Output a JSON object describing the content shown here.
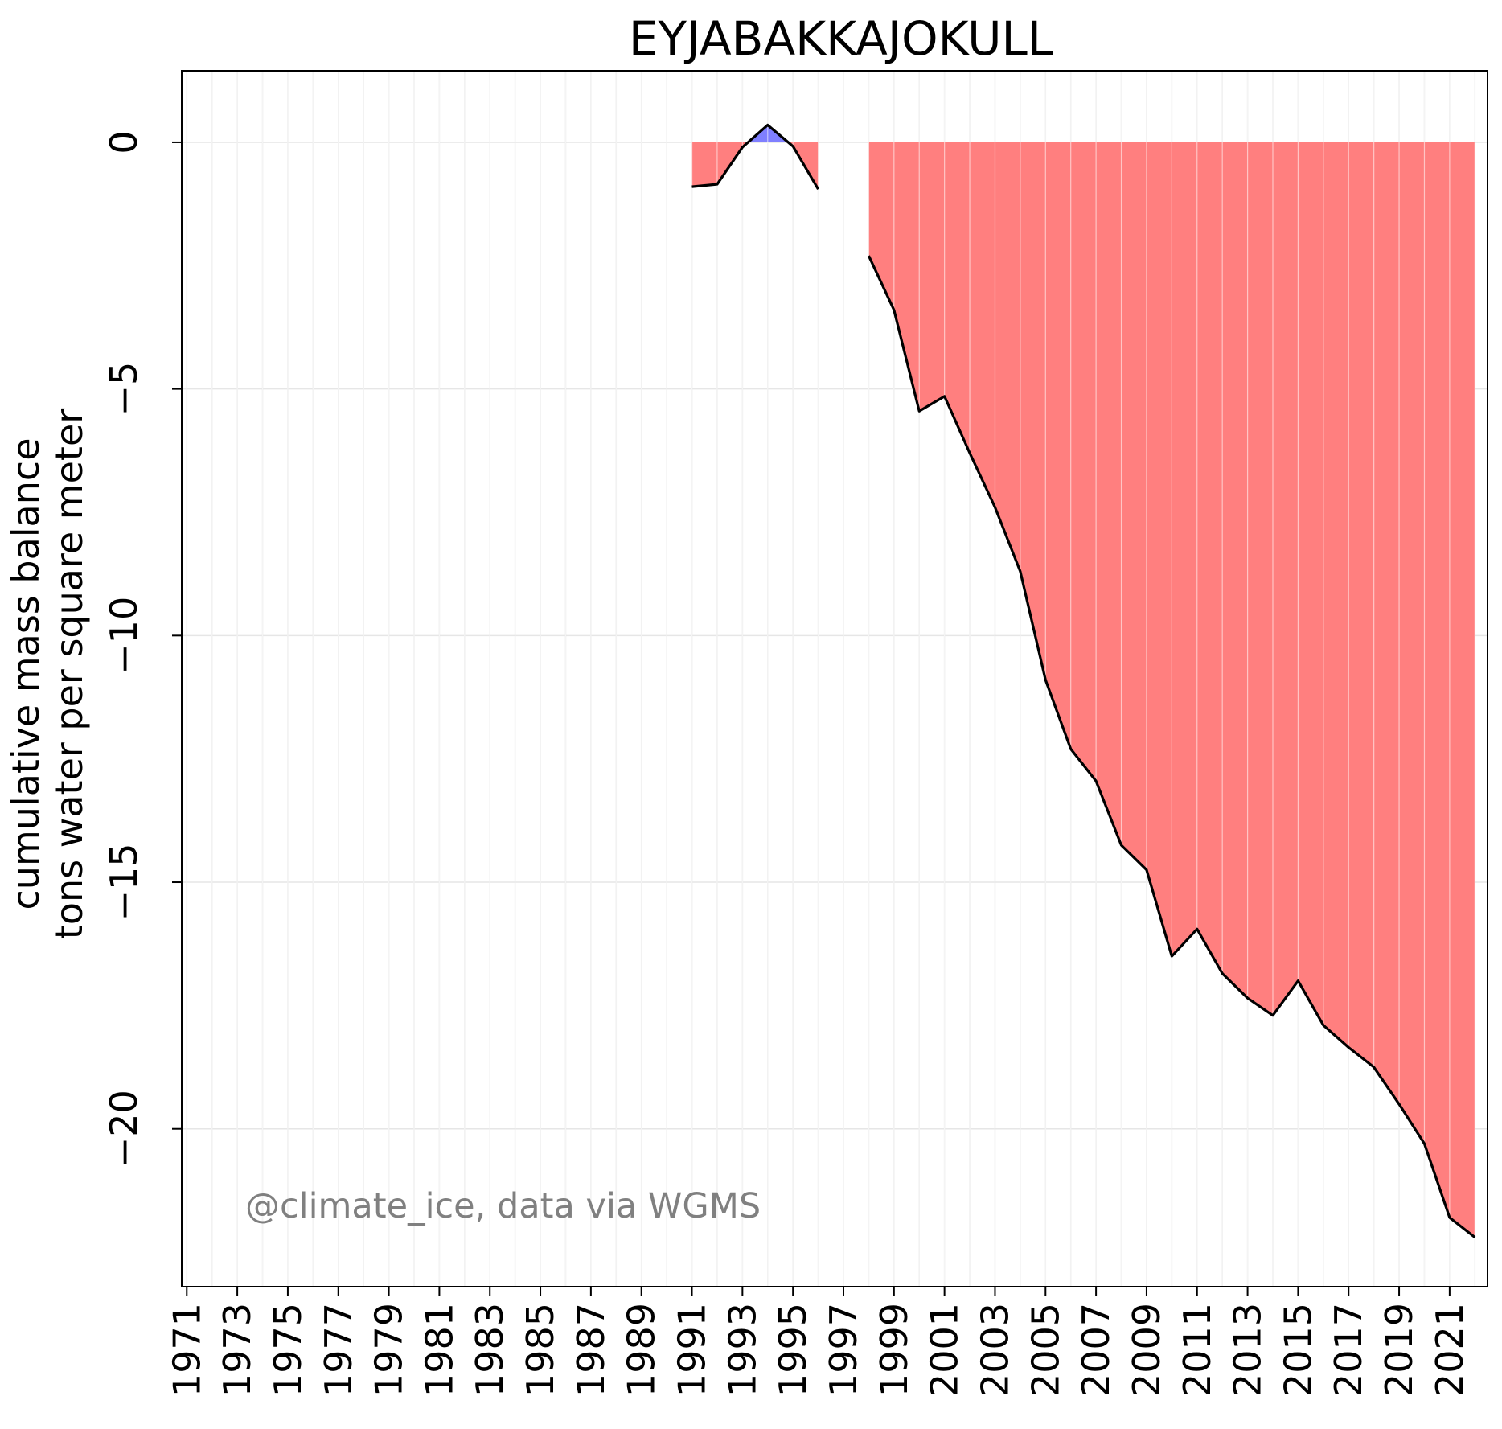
{
  "chart_data": {
    "type": "area",
    "title": "EYJABAKKAJOKULL",
    "ylabel_lines": [
      "cumulative mass balance",
      "tons water per square meter"
    ],
    "xlabel": "",
    "annotation": "@climate_ice, data via WGMS",
    "xlim": [
      1970.8,
      2022.5
    ],
    "ylim": [
      -23.2,
      1.45
    ],
    "yticks": [
      0,
      -5,
      -10,
      -15,
      -20
    ],
    "ytick_labels": [
      "0",
      "−5",
      "−10",
      "−15",
      "−20"
    ],
    "xticks": [
      1971,
      1973,
      1975,
      1977,
      1979,
      1981,
      1983,
      1985,
      1987,
      1989,
      1991,
      1993,
      1995,
      1997,
      1999,
      2001,
      2003,
      2005,
      2007,
      2009,
      2011,
      2013,
      2015,
      2017,
      2019,
      2021
    ],
    "grid": true,
    "colors": {
      "negative": "#ff7f7f",
      "positive": "#7f7fff",
      "line": "#000000",
      "grid": "#e6e6e6",
      "credit": "#808080"
    },
    "segments": [
      {
        "x": [
          1991,
          1992,
          1993,
          1994,
          1995,
          1996
        ],
        "y": [
          -0.9,
          -0.85,
          -0.1,
          0.35,
          -0.08,
          -0.95
        ]
      },
      {
        "x": [
          1998,
          1999,
          2000,
          2001,
          2002,
          2003,
          2004,
          2005,
          2006,
          2007,
          2008,
          2009,
          2010,
          2011,
          2012,
          2013,
          2014,
          2015,
          2016,
          2017,
          2018,
          2019,
          2020,
          2021,
          2022
        ],
        "y": [
          -2.3,
          -3.4,
          -5.45,
          -5.15,
          -6.3,
          -7.4,
          -8.7,
          -10.9,
          -12.3,
          -12.95,
          -14.25,
          -14.75,
          -16.5,
          -15.95,
          -16.85,
          -17.35,
          -17.7,
          -17.0,
          -17.9,
          -18.35,
          -18.75,
          -19.5,
          -20.3,
          -21.8,
          -22.2
        ]
      }
    ]
  }
}
